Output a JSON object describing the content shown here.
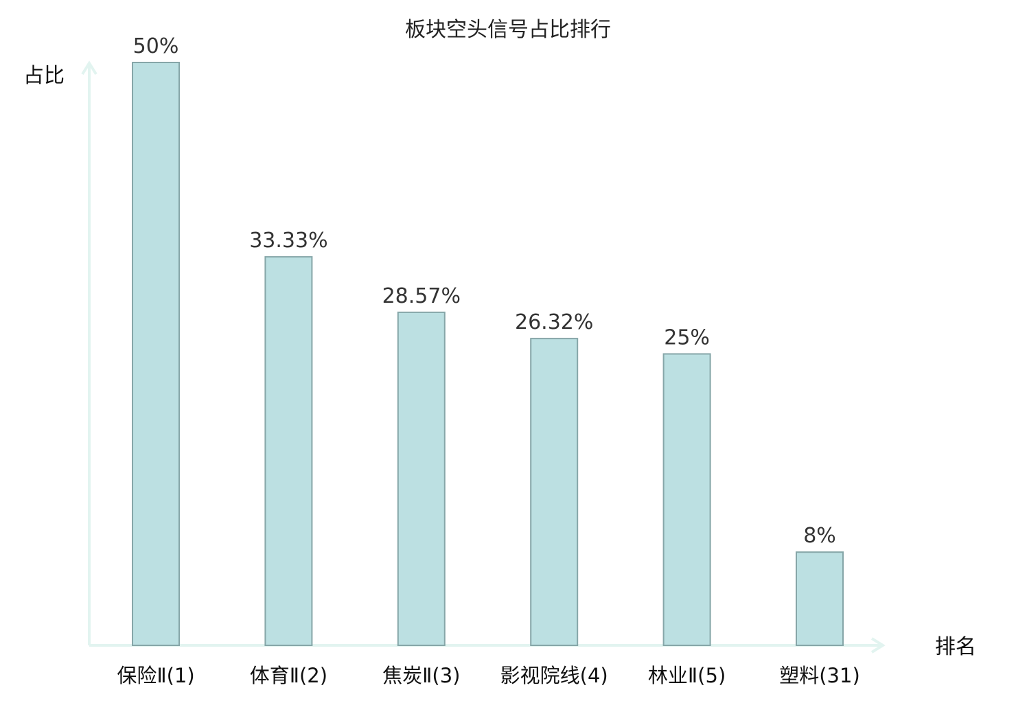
{
  "colors": {
    "bar_fill": "#bce0e2",
    "bar_stroke": "#86a6a8",
    "axis": "#e2f4f0",
    "label_text": "#111111",
    "highlight_text": "#e8282b"
  },
  "chart_data": {
    "type": "bar",
    "title": "板块空头信号占比排行",
    "ylabel": "占比",
    "xlabel": "排名",
    "categories": [
      "保险Ⅱ(1)",
      "体育Ⅱ(2)",
      "焦炭Ⅱ(3)",
      "影视院线(4)",
      "林业Ⅱ(5)",
      "塑料(31)"
    ],
    "values": [
      50,
      33.33,
      28.57,
      26.32,
      25,
      8
    ],
    "value_labels": [
      "50%",
      "33.33%",
      "28.57%",
      "26.32%",
      "25%",
      "8%"
    ],
    "highlight_index": 5,
    "ylim": [
      0,
      50
    ],
    "grid": false,
    "legend": "none"
  }
}
